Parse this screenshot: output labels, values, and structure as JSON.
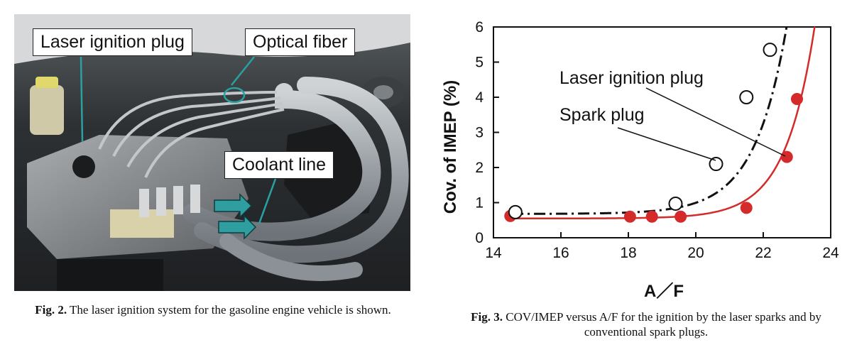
{
  "figure2": {
    "callouts": {
      "laser_plug": "Laser ignition plug",
      "optical_fiber": "Optical fiber",
      "coolant_line": "Coolant line"
    },
    "caption_label": "Fig. 2.",
    "caption_text": " The laser ignition system for the gasoline engine vehicle is shown."
  },
  "figure3": {
    "caption_label": "Fig. 3.",
    "caption_text": " COV/IMEP versus A/F for the ignition by the laser sparks and by conventional spark plugs."
  },
  "chart_data": {
    "type": "scatter",
    "xlabel": "A／F",
    "ylabel": "Cov. of IMEP (%)",
    "xlim": [
      14,
      24
    ],
    "ylim": [
      0,
      6
    ],
    "xticks": [
      "14",
      "16",
      "18",
      "20",
      "22",
      "24"
    ],
    "yticks": [
      "0",
      "1",
      "2",
      "3",
      "4",
      "5",
      "6"
    ],
    "grid": false,
    "series": [
      {
        "name": "Laser ignition plug",
        "marker": "open-circle",
        "line_style": "dash-dot",
        "color": "#111111",
        "x": [
          14.65,
          19.4,
          20.6,
          21.5,
          22.2
        ],
        "y": [
          0.73,
          0.97,
          2.1,
          4.0,
          5.35
        ]
      },
      {
        "name": "Spark plug",
        "marker": "filled-circle",
        "line_style": "solid",
        "color": "#d42a2a",
        "x": [
          14.5,
          18.05,
          18.7,
          19.55,
          21.5,
          22.7,
          23.0
        ],
        "y": [
          0.62,
          0.6,
          0.6,
          0.6,
          0.85,
          2.3,
          3.95
        ]
      }
    ]
  }
}
